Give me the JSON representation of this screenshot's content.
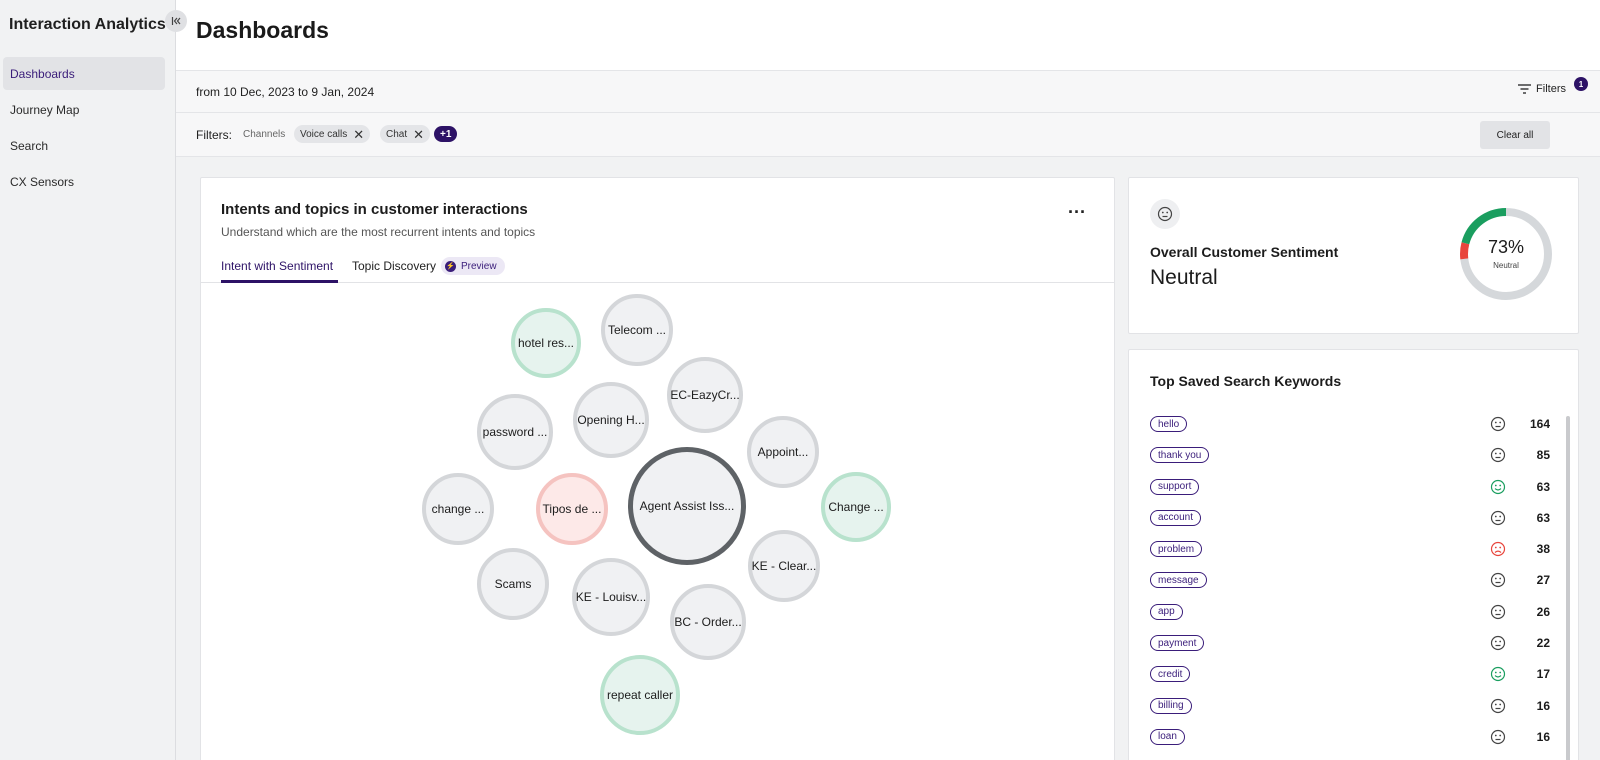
{
  "app": {
    "title": "Interaction Analytics"
  },
  "sidebar": {
    "items": [
      {
        "label": "Dashboards",
        "active": true
      },
      {
        "label": "Journey Map",
        "active": false
      },
      {
        "label": "Search",
        "active": false
      },
      {
        "label": "CX Sensors",
        "active": false
      }
    ]
  },
  "header": {
    "title": "Dashboards"
  },
  "datebar": {
    "range": "from 10 Dec, 2023 to 9 Jan, 2024",
    "filters_label": "Filters",
    "filters_count": "1"
  },
  "filterbar": {
    "label": "Filters:",
    "channels_label": "Channels",
    "chips": [
      "Voice calls",
      "Chat"
    ],
    "more": "+1",
    "clear_all": "Clear all"
  },
  "intents_card": {
    "title": "Intents and topics in customer interactions",
    "subtitle": "Understand which are the most recurrent intents and topics",
    "tabs": [
      "Intent with Sentiment",
      "Topic Discovery"
    ],
    "preview_label": "Preview",
    "bubbles": [
      {
        "label": "Agent Assist Iss...",
        "sentiment": "neutral"
      },
      {
        "label": "Telecom ...",
        "sentiment": "neutral"
      },
      {
        "label": "hotel res...",
        "sentiment": "positive"
      },
      {
        "label": "EC-EazyCr...",
        "sentiment": "neutral"
      },
      {
        "label": "Opening H...",
        "sentiment": "neutral"
      },
      {
        "label": "password ...",
        "sentiment": "neutral"
      },
      {
        "label": "Appoint...",
        "sentiment": "neutral"
      },
      {
        "label": "change ...",
        "sentiment": "neutral"
      },
      {
        "label": "Tipos de ...",
        "sentiment": "negative"
      },
      {
        "label": "Change ...",
        "sentiment": "positive"
      },
      {
        "label": "KE - Clear...",
        "sentiment": "neutral"
      },
      {
        "label": "Scams",
        "sentiment": "neutral"
      },
      {
        "label": "KE - Louisv...",
        "sentiment": "neutral"
      },
      {
        "label": "BC - Order...",
        "sentiment": "neutral"
      },
      {
        "label": "repeat caller",
        "sentiment": "positive"
      }
    ]
  },
  "sentiment_card": {
    "title": "Overall Customer Sentiment",
    "value": "Neutral",
    "percent_label": "73%",
    "donut_label": "Neutral",
    "neutral_share": 0.73,
    "negative_share": 0.06,
    "positive_share": 0.21,
    "colors": {
      "neutral": "#d5d8db",
      "negative": "#e8453c",
      "positive": "#1a9e5f"
    }
  },
  "keywords_card": {
    "title": "Top Saved Search Keywords",
    "rows": [
      {
        "keyword": "hello",
        "sentiment": "neutral",
        "count": "164"
      },
      {
        "keyword": "thank you",
        "sentiment": "neutral",
        "count": "85"
      },
      {
        "keyword": "support",
        "sentiment": "positive",
        "count": "63"
      },
      {
        "keyword": "account",
        "sentiment": "neutral",
        "count": "63"
      },
      {
        "keyword": "problem",
        "sentiment": "negative",
        "count": "38"
      },
      {
        "keyword": "message",
        "sentiment": "neutral",
        "count": "27"
      },
      {
        "keyword": "app",
        "sentiment": "neutral",
        "count": "26"
      },
      {
        "keyword": "payment",
        "sentiment": "neutral",
        "count": "22"
      },
      {
        "keyword": "credit",
        "sentiment": "positive",
        "count": "17"
      },
      {
        "keyword": "billing",
        "sentiment": "neutral",
        "count": "16"
      },
      {
        "keyword": "loan",
        "sentiment": "neutral",
        "count": "16"
      }
    ]
  }
}
